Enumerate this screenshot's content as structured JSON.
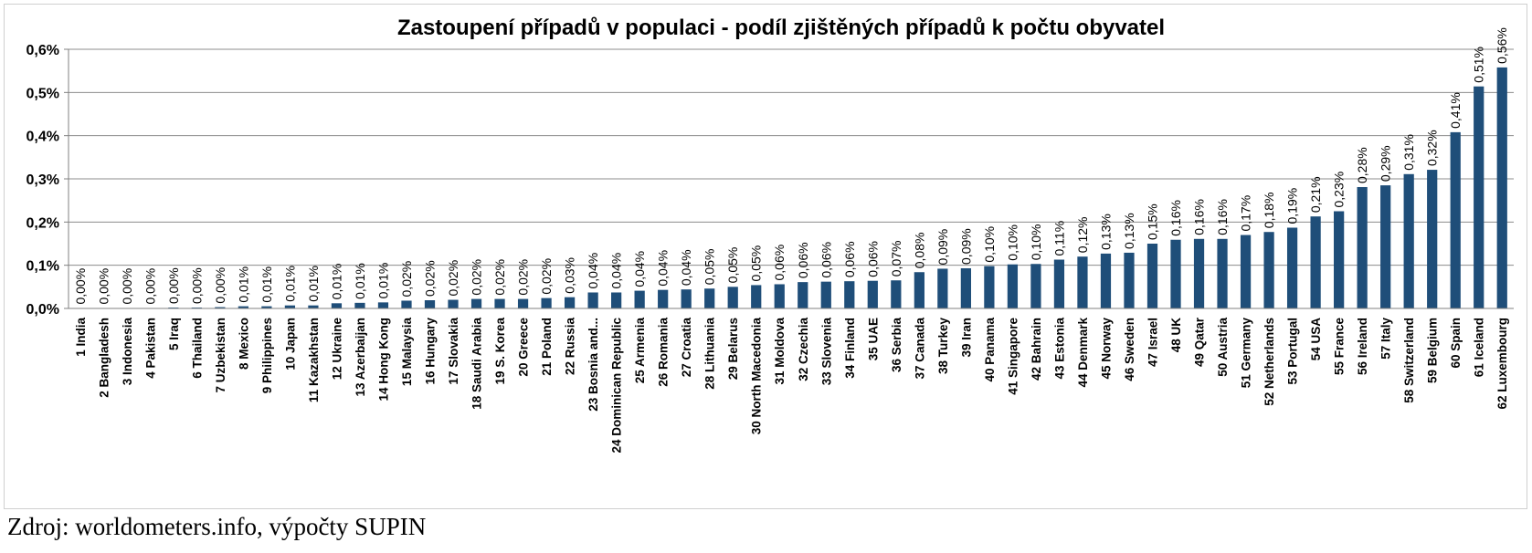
{
  "chart_data": {
    "type": "bar",
    "title": "Zastoupení případů v populaci - podíl zjištěných případů k počtu obyvatel",
    "xlabel": "",
    "ylabel": "",
    "ylim": [
      0,
      0.6
    ],
    "yticks": [
      "0,0%",
      "0,1%",
      "0,2%",
      "0,3%",
      "0,4%",
      "0,5%",
      "0,6%"
    ],
    "grid": true,
    "bar_color": "#1f4e79",
    "categories": [
      "1 India",
      "2 Bangladesh",
      "3 Indonesia",
      "4 Pakistan",
      "5 Iraq",
      "6 Thailand",
      "7 Uzbekistan",
      "8 Mexico",
      "9 Philippines",
      "10 Japan",
      "11 Kazakhstan",
      "12 Ukraine",
      "13 Azerbaijan",
      "14 Hong Kong",
      "15 Malaysia",
      "16 Hungary",
      "17 Slovakia",
      "18 Saudi Arabia",
      "19 S. Korea",
      "20 Greece",
      "21 Poland",
      "22 Russia",
      "23 Bosnia and...",
      "24 Dominican Republic",
      "25 Armenia",
      "26 Romania",
      "27 Croatia",
      "28 Lithuania",
      "29 Belarus",
      "30 North Macedonia",
      "31 Moldova",
      "32 Czechia",
      "33 Slovenia",
      "34 Finland",
      "35 UAE",
      "36 Serbia",
      "37 Canada",
      "38 Turkey",
      "39 Iran",
      "40 Panama",
      "41 Singapore",
      "42 Bahrain",
      "43 Estonia",
      "44 Denmark",
      "45 Norway",
      "46 Sweden",
      "47 Israel",
      "48 UK",
      "49 Qatar",
      "50 Austria",
      "51 Germany",
      "52 Netherlands",
      "53 Portugal",
      "54 USA",
      "55 France",
      "56 Ireland",
      "57 Italy",
      "58 Switzerland",
      "59 Belgium",
      "60 Spain",
      "61 Iceland",
      "62 Luxembourg"
    ],
    "values": [
      0.001,
      0.001,
      0.001,
      0.001,
      0.002,
      0.002,
      0.003,
      0.005,
      0.005,
      0.007,
      0.007,
      0.012,
      0.013,
      0.014,
      0.018,
      0.019,
      0.02,
      0.022,
      0.022,
      0.022,
      0.024,
      0.026,
      0.037,
      0.037,
      0.041,
      0.043,
      0.044,
      0.046,
      0.05,
      0.054,
      0.056,
      0.061,
      0.062,
      0.063,
      0.064,
      0.065,
      0.084,
      0.092,
      0.093,
      0.098,
      0.102,
      0.103,
      0.113,
      0.12,
      0.127,
      0.129,
      0.15,
      0.159,
      0.161,
      0.161,
      0.17,
      0.177,
      0.187,
      0.213,
      0.225,
      0.281,
      0.285,
      0.311,
      0.321,
      0.408,
      0.514,
      0.558
    ],
    "value_labels": [
      "0,00%",
      "0,00%",
      "0,00%",
      "0,00%",
      "0,00%",
      "0,00%",
      "0,00%",
      "0,01%",
      "0,01%",
      "0,01%",
      "0,01%",
      "0,01%",
      "0,01%",
      "0,01%",
      "0,02%",
      "0,02%",
      "0,02%",
      "0,02%",
      "0,02%",
      "0,02%",
      "0,02%",
      "0,03%",
      "0,04%",
      "0,04%",
      "0,04%",
      "0,04%",
      "0,04%",
      "0,05%",
      "0,05%",
      "0,05%",
      "0,06%",
      "0,06%",
      "0,06%",
      "0,06%",
      "0,06%",
      "0,07%",
      "0,08%",
      "0,09%",
      "0,09%",
      "0,10%",
      "0,10%",
      "0,10%",
      "0,11%",
      "0,12%",
      "0,13%",
      "0,13%",
      "0,15%",
      "0,16%",
      "0,16%",
      "0,16%",
      "0,17%",
      "0,18%",
      "0,19%",
      "0,21%",
      "0,23%",
      "0,28%",
      "0,29%",
      "0,31%",
      "0,32%",
      "0,41%",
      "0,51%",
      "0,56%"
    ]
  },
  "source_note": "Zdroj: worldometers.info, výpočty SUPIN"
}
